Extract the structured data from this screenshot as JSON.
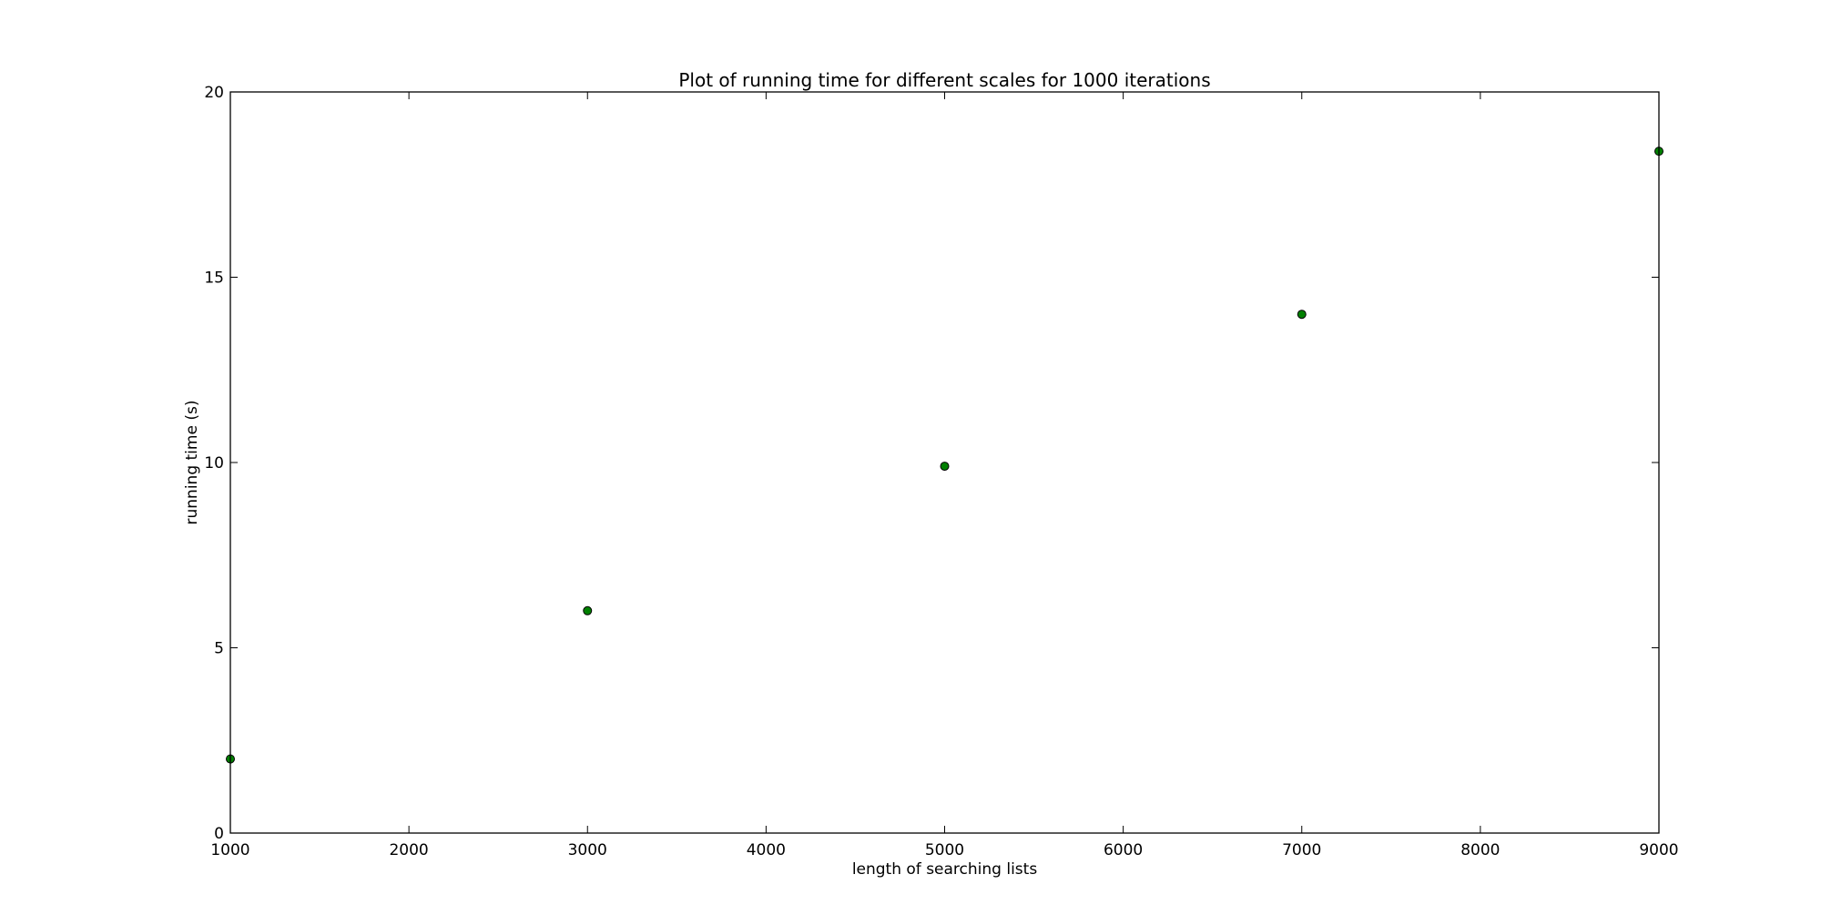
{
  "chart_data": {
    "type": "scatter",
    "title": "Plot of running time for different scales for 1000 iterations",
    "xlabel": "length of searching lists",
    "ylabel": "running time (s)",
    "xlim": [
      1000,
      9000
    ],
    "ylim": [
      0,
      20
    ],
    "xticks": [
      1000,
      2000,
      3000,
      4000,
      5000,
      6000,
      7000,
      8000,
      9000
    ],
    "yticks": [
      0,
      5,
      10,
      15,
      20
    ],
    "grid": false,
    "series": [
      {
        "x": [
          1000,
          3000,
          5000,
          7000,
          9000
        ],
        "y": [
          2.0,
          6.0,
          9.9,
          14.0,
          18.4
        ],
        "marker": "circle",
        "color": "#008000",
        "edge_color": "#000000"
      }
    ]
  }
}
